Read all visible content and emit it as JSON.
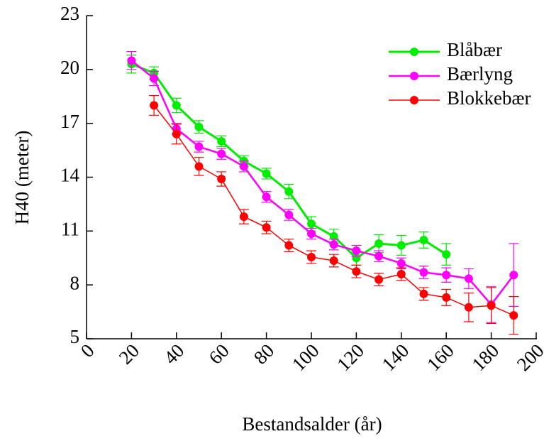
{
  "chart_data": {
    "type": "line",
    "xlabel": "Bestandsalder (år)",
    "ylabel": "H40 (meter)",
    "x": [
      20,
      30,
      40,
      50,
      60,
      70,
      80,
      90,
      100,
      110,
      120,
      130,
      140,
      150,
      160,
      170,
      180,
      190
    ],
    "xlim": [
      0,
      200
    ],
    "xticks": [
      0,
      20,
      40,
      60,
      80,
      100,
      120,
      140,
      160,
      180,
      200
    ],
    "ylim": [
      5,
      23
    ],
    "yticks": [
      5,
      8,
      11,
      14,
      17,
      20,
      23
    ],
    "legend": "upper right",
    "series": [
      {
        "name": "Blåbær",
        "color": "#00ee00",
        "values": [
          20.3,
          19.8,
          18.0,
          16.8,
          16.0,
          14.9,
          14.2,
          13.2,
          11.4,
          10.7,
          9.5,
          10.3,
          10.2,
          10.5,
          9.7,
          null,
          null,
          null
        ],
        "errors": [
          0.5,
          0.35,
          0.4,
          0.35,
          0.3,
          0.3,
          0.3,
          0.4,
          0.4,
          0.4,
          0.4,
          0.5,
          0.55,
          0.45,
          0.6,
          null,
          null,
          null
        ]
      },
      {
        "name": "Bærlyng",
        "color": "#ff00ff",
        "values": [
          20.5,
          19.5,
          16.7,
          15.7,
          15.3,
          14.6,
          12.9,
          11.9,
          10.85,
          10.25,
          9.9,
          9.6,
          9.2,
          8.7,
          8.55,
          8.35,
          6.9,
          8.55
        ],
        "errors": [
          0.5,
          0.4,
          0.3,
          0.3,
          0.3,
          0.3,
          0.3,
          0.3,
          0.3,
          0.3,
          0.3,
          0.3,
          0.3,
          0.35,
          0.4,
          0.55,
          1.0,
          1.75
        ]
      },
      {
        "name": "Blokkebær",
        "color": "#ff0000",
        "values": [
          null,
          18.0,
          16.4,
          14.6,
          13.9,
          11.8,
          11.2,
          10.2,
          9.55,
          9.35,
          8.75,
          8.3,
          8.6,
          7.5,
          7.3,
          6.75,
          6.85,
          6.3
        ],
        "errors": [
          null,
          0.55,
          0.55,
          0.5,
          0.4,
          0.4,
          0.35,
          0.35,
          0.35,
          0.35,
          0.35,
          0.35,
          0.35,
          0.35,
          0.45,
          0.8,
          1.0,
          1.05
        ]
      }
    ]
  }
}
